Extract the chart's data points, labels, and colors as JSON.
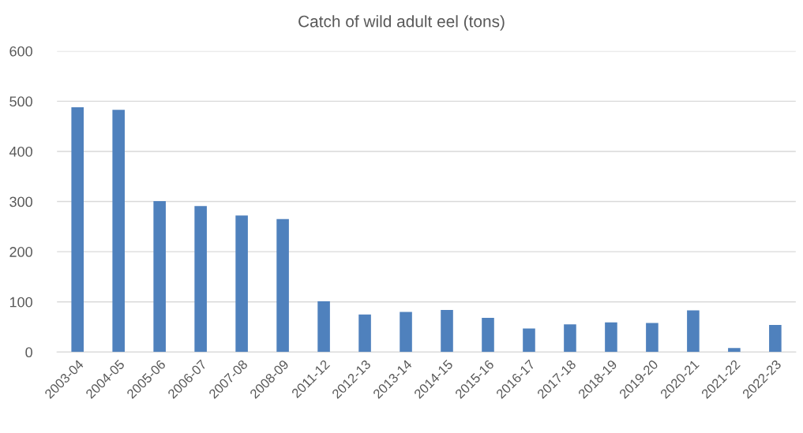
{
  "chart_data": {
    "type": "bar",
    "title": "Catch of wild adult eel (tons)",
    "categories": [
      "2003-04",
      "2004-05",
      "2005-06",
      "2006-07",
      "2007-08",
      "2008-09",
      "2011-12",
      "2012-13",
      "2013-14",
      "2014-15",
      "2015-16",
      "2016-17",
      "2017-18",
      "2018-19",
      "2019-20",
      "2020-21",
      "2021-22",
      "2022-23"
    ],
    "values": [
      488,
      483,
      301,
      291,
      272,
      265,
      101,
      75,
      80,
      84,
      68,
      47,
      55,
      59,
      58,
      83,
      8,
      54
    ],
    "color": "#4f81bd",
    "ylim": [
      0,
      600
    ],
    "yticks": [
      0,
      100,
      200,
      300,
      400,
      500,
      600
    ],
    "grid": "y",
    "legend": false
  }
}
